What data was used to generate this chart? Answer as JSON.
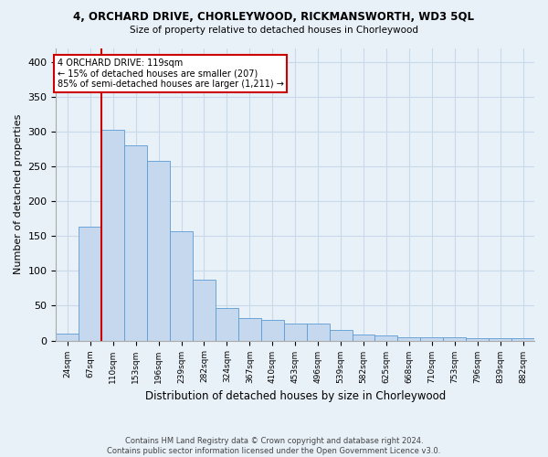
{
  "title1": "4, ORCHARD DRIVE, CHORLEYWOOD, RICKMANSWORTH, WD3 5QL",
  "title2": "Size of property relative to detached houses in Chorleywood",
  "xlabel": "Distribution of detached houses by size in Chorleywood",
  "ylabel": "Number of detached properties",
  "categories": [
    "24sqm",
    "67sqm",
    "110sqm",
    "153sqm",
    "196sqm",
    "239sqm",
    "282sqm",
    "324sqm",
    "367sqm",
    "410sqm",
    "453sqm",
    "496sqm",
    "539sqm",
    "582sqm",
    "625sqm",
    "668sqm",
    "710sqm",
    "753sqm",
    "796sqm",
    "839sqm",
    "882sqm"
  ],
  "values": [
    10,
    163,
    303,
    280,
    258,
    157,
    87,
    47,
    32,
    30,
    25,
    25,
    15,
    8,
    7,
    5,
    5,
    5,
    4,
    4,
    3
  ],
  "bar_color": "#c5d8ed",
  "bar_edge_color": "#5b9bd5",
  "grid_color": "#c8daea",
  "background_color": "#e8f0f8",
  "red_line_color": "#cc0000",
  "red_line_x": 1.5,
  "annotation_line1": "4 ORCHARD DRIVE: 119sqm",
  "annotation_line2": "← 15% of detached houses are smaller (207)",
  "annotation_line3": "85% of semi-detached houses are larger (1,211) →",
  "annotation_box_color": "#ffffff",
  "annotation_border_color": "#cc0000",
  "footer_text": "Contains HM Land Registry data © Crown copyright and database right 2024.\nContains public sector information licensed under the Open Government Licence v3.0.",
  "ylim": [
    0,
    420
  ],
  "yticks": [
    0,
    50,
    100,
    150,
    200,
    250,
    300,
    350,
    400
  ]
}
